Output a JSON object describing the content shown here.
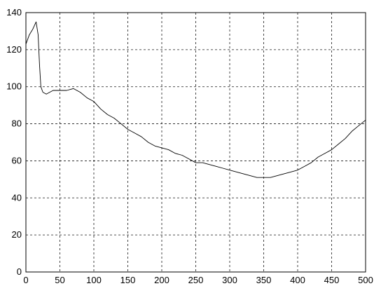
{
  "chart_data": {
    "type": "line",
    "title": "",
    "xlabel": "",
    "ylabel": "",
    "xlim": [
      0,
      500
    ],
    "ylim": [
      0,
      140
    ],
    "xticks": [
      0,
      50,
      100,
      150,
      200,
      250,
      300,
      350,
      400,
      450,
      500
    ],
    "yticks": [
      0,
      20,
      40,
      60,
      80,
      100,
      120,
      140
    ],
    "grid": true,
    "series": [
      {
        "color": "#000000",
        "x": [
          0,
          5,
          10,
          15,
          18,
          20,
          22,
          25,
          30,
          40,
          50,
          60,
          70,
          80,
          90,
          100,
          110,
          120,
          130,
          140,
          150,
          160,
          170,
          180,
          190,
          200,
          210,
          220,
          230,
          240,
          250,
          260,
          270,
          280,
          290,
          300,
          310,
          320,
          330,
          340,
          350,
          360,
          370,
          380,
          390,
          400,
          410,
          420,
          430,
          440,
          450,
          460,
          470,
          480,
          490,
          500
        ],
        "y": [
          123,
          128,
          131,
          135,
          128,
          112,
          100,
          97,
          96,
          98,
          98,
          98,
          99,
          97,
          94,
          92,
          88,
          85,
          83,
          80,
          77,
          75,
          73,
          70,
          68,
          67,
          66,
          64,
          63,
          61,
          59,
          59,
          58,
          57,
          56,
          55,
          54,
          53,
          52,
          51,
          51,
          51,
          52,
          53,
          54,
          55,
          57,
          59,
          62,
          64,
          66,
          69,
          72,
          76,
          79,
          82
        ]
      }
    ]
  }
}
